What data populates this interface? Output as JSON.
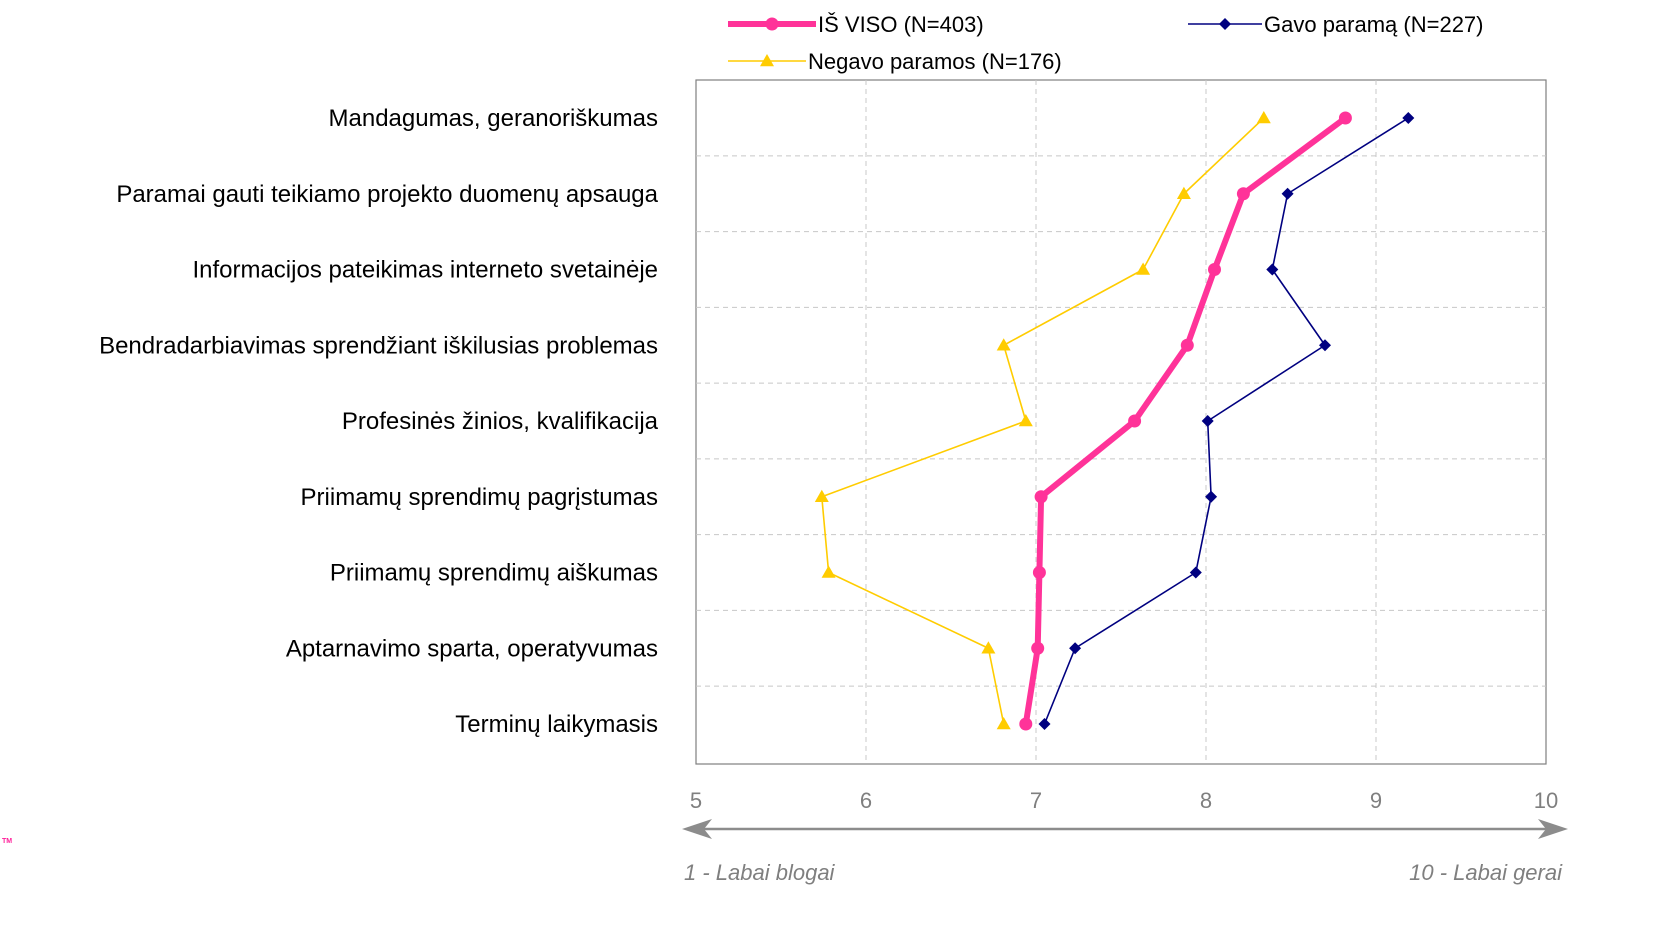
{
  "chart_data": {
    "type": "line",
    "orientation": "horizontal",
    "title": "",
    "xlabel": "",
    "ylabel": "",
    "xlim": [
      5,
      10
    ],
    "x_ticks": [
      "5",
      "6",
      "7",
      "8",
      "9",
      "10"
    ],
    "grid": true,
    "legend_placement": "top",
    "categories": [
      "Mandagumas, geranoriškumas",
      "Paramai gauti teikiamo projekto duomenų apsauga",
      "Informacijos pateikimas interneto svetainėje",
      "Bendradarbiavimas sprendžiant iškilusias problemas",
      "Profesinės žinios, kvalifikacija",
      "Priimamų sprendimų pagrįstumas",
      "Priimamų sprendimų aiškumas",
      "Aptarnavimo sparta, operatyvumas",
      "Terminų laikymasis"
    ],
    "series": [
      {
        "name": "IŠ VISO (N=403)",
        "color": "#ff3399",
        "marker": "circle",
        "values": [
          8.82,
          8.22,
          8.05,
          7.89,
          7.58,
          7.03,
          7.02,
          7.01,
          6.94
        ]
      },
      {
        "name": "Gavo paramą (N=227)",
        "color": "#000080",
        "marker": "diamond",
        "values": [
          9.19,
          8.48,
          8.39,
          8.7,
          8.01,
          8.03,
          7.94,
          7.23,
          7.05
        ]
      },
      {
        "name": "Negavo paramos (N=176)",
        "color": "#ffcc00",
        "marker": "triangle",
        "values": [
          8.34,
          7.87,
          7.63,
          6.81,
          6.94,
          5.74,
          5.78,
          6.72,
          6.81
        ]
      }
    ],
    "scale_labels": {
      "left": "1 - Labai blogai",
      "right": "10 - Labai gerai"
    }
  },
  "watermark": {
    "text": "TM",
    "color": "#ff1f9a"
  }
}
